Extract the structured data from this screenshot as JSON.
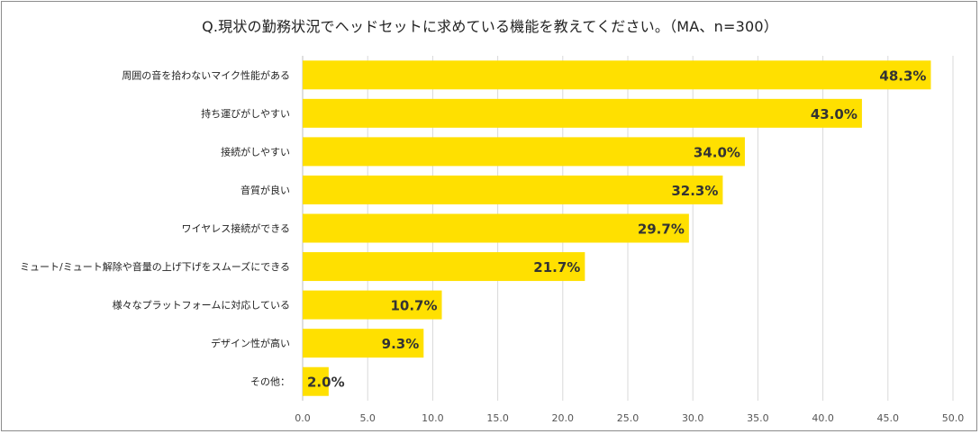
{
  "chart_data": {
    "type": "bar",
    "orientation": "horizontal",
    "title": "Q.現状の勤務状況でヘッドセットに求めている機能を教えてください。（MA、n=300）",
    "categories": [
      "周囲の音を拾わないマイク性能がある",
      "持ち運びがしやすい",
      "接続がしやすい",
      "音質が良い",
      "ワイヤレス接続ができる",
      "ミュート/ミュート解除や音量の上げ下げをスムーズにできる",
      "様々なプラットフォームに対応している",
      "デザイン性が高い",
      "その他："
    ],
    "values": [
      48.3,
      43.0,
      34.0,
      32.3,
      29.7,
      21.7,
      10.7,
      9.3,
      2.0
    ],
    "value_labels": [
      "48.3%",
      "43.0%",
      "34.0%",
      "32.3%",
      "29.7%",
      "21.7%",
      "10.7%",
      "9.3%",
      "2.0%"
    ],
    "xlim": [
      0,
      50
    ],
    "xticks": [
      "0.0",
      "5.0",
      "10.0",
      "15.0",
      "20.0",
      "25.0",
      "30.0",
      "35.0",
      "40.0",
      "45.0",
      "50.0"
    ],
    "grid": true,
    "bar_color": "#FFE000",
    "grid_color": "#d9d9d9",
    "legend": false
  }
}
